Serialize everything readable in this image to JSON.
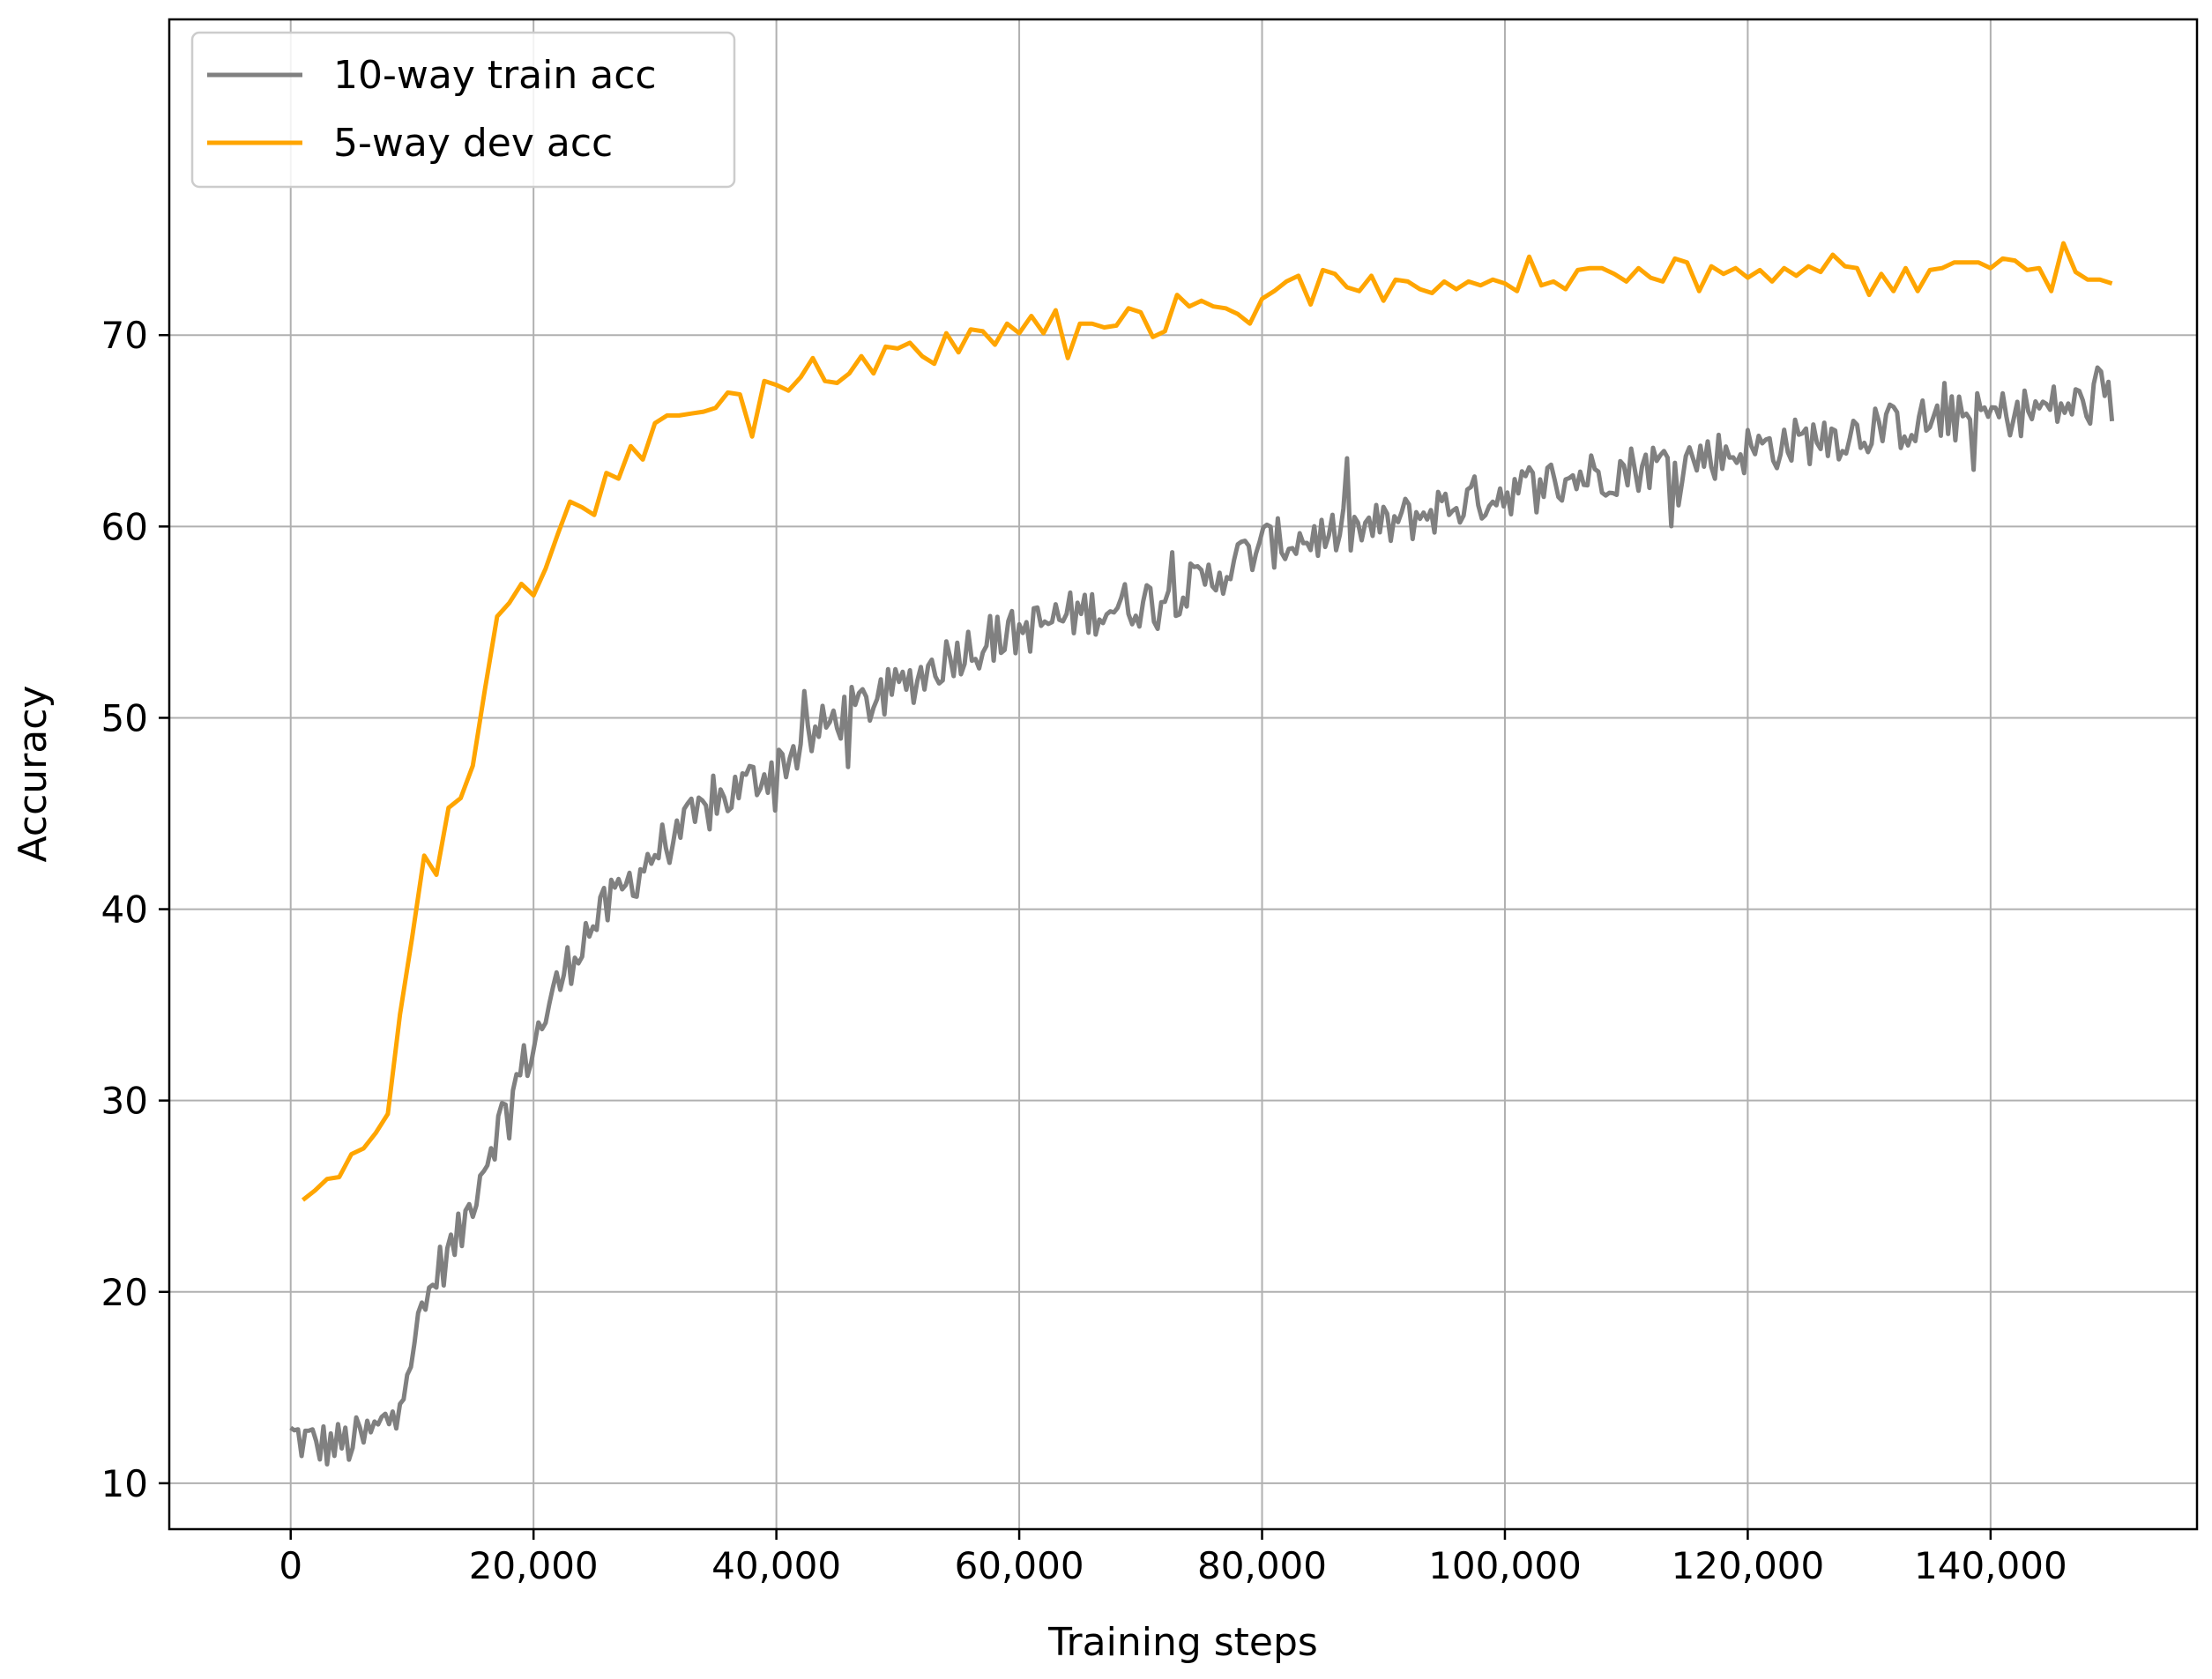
{
  "chart_data": {
    "type": "line",
    "title": "",
    "xlabel": "Training steps",
    "ylabel": "Accuracy",
    "xlim": [
      -10000,
      157000
    ],
    "ylim": [
      7.6,
      86.5
    ],
    "grid": true,
    "legend_position": "top-left",
    "x_ticks": [
      0,
      20000,
      40000,
      60000,
      80000,
      100000,
      120000,
      140000
    ],
    "x_tick_labels": [
      "0",
      "20,000",
      "40,000",
      "60,000",
      "80,000",
      "100,000",
      "120,000",
      "140,000"
    ],
    "y_ticks": [
      10,
      20,
      30,
      40,
      50,
      60,
      70
    ],
    "y_tick_labels": [
      "10",
      "20",
      "30",
      "40",
      "50",
      "60",
      "70"
    ],
    "series": [
      {
        "name": "10-way train acc",
        "color": "#808080",
        "noisy": true,
        "noise": 1.3,
        "x": [
          0,
          2000,
          4000,
          6000,
          8000,
          10000,
          12000,
          14000,
          16000,
          18000,
          20000,
          22000,
          24000,
          26000,
          28000,
          30000,
          35000,
          40000,
          45000,
          50000,
          55000,
          60000,
          65000,
          70000,
          75000,
          80000,
          85000,
          90000,
          95000,
          100000,
          105000,
          110000,
          115000,
          120000,
          125000,
          130000,
          135000,
          140000,
          145000,
          150000
        ],
        "values": [
          12.5,
          12.0,
          12.0,
          12.3,
          13.2,
          17.0,
          21.0,
          23.0,
          27.0,
          30.0,
          33.0,
          36.0,
          38.5,
          40.0,
          41.5,
          43.0,
          45.5,
          47.5,
          50.0,
          51.5,
          53.5,
          54.5,
          55.5,
          56.0,
          57.0,
          59.0,
          59.5,
          60.0,
          61.0,
          61.8,
          62.5,
          63.0,
          63.5,
          64.0,
          64.5,
          65.0,
          65.5,
          65.8,
          66.2,
          66.5
        ]
      },
      {
        "name": "5-way dev acc",
        "color": "#FFA500",
        "noisy": false,
        "x": [
          1000,
          2000,
          3000,
          4000,
          5000,
          6000,
          7000,
          8000,
          9000,
          10000,
          11000,
          12000,
          13000,
          14000,
          15000,
          16000,
          17000,
          18000,
          19000,
          20000,
          21000,
          22000,
          23000,
          24000,
          25000,
          26000,
          27000,
          28000,
          29000,
          30000,
          31000,
          32000,
          33000,
          34000,
          35000,
          36000,
          37000,
          38000,
          39000,
          40000,
          41000,
          42000,
          43000,
          44000,
          45000,
          46000,
          47000,
          48000,
          49000,
          50000,
          51000,
          52000,
          53000,
          54000,
          55000,
          56000,
          57000,
          58000,
          59000,
          60000,
          61000,
          62000,
          63000,
          64000,
          65000,
          66000,
          67000,
          68000,
          69000,
          70000,
          71000,
          72000,
          73000,
          74000,
          75000,
          76000,
          77000,
          78000,
          79000,
          80000,
          81000,
          82000,
          83000,
          84000,
          85000,
          86000,
          87000,
          88000,
          89000,
          90000,
          91000,
          92000,
          93000,
          94000,
          95000,
          96000,
          97000,
          98000,
          99000,
          100000,
          101000,
          102000,
          103000,
          104000,
          105000,
          106000,
          107000,
          108000,
          109000,
          110000,
          111000,
          112000,
          113000,
          114000,
          115000,
          116000,
          117000,
          118000,
          119000,
          120000,
          121000,
          122000,
          123000,
          124000,
          125000,
          126000,
          127000,
          128000,
          129000,
          130000,
          131000,
          132000,
          133000,
          134000,
          135000,
          136000,
          137000,
          138000,
          139000,
          140000,
          141000,
          142000,
          143000,
          144000,
          145000,
          146000,
          147000,
          148000,
          149000,
          150000
        ],
        "values": [
          24.8,
          25.3,
          25.9,
          26.0,
          27.2,
          27.5,
          28.3,
          29.3,
          34.5,
          38.5,
          42.8,
          41.8,
          45.3,
          45.8,
          47.5,
          51.5,
          55.3,
          56.0,
          57.0,
          56.4,
          57.8,
          59.6,
          61.3,
          61.0,
          60.6,
          62.8,
          62.5,
          64.2,
          63.5,
          65.4,
          65.8,
          65.8,
          65.9,
          66.0,
          66.2,
          67.0,
          66.9,
          64.7,
          67.6,
          67.4,
          67.1,
          67.8,
          68.8,
          67.6,
          67.5,
          68.0,
          68.9,
          68.0,
          69.4,
          69.3,
          69.6,
          68.9,
          68.5,
          70.1,
          69.1,
          70.3,
          70.2,
          69.5,
          70.6,
          70.1,
          71.0,
          70.1,
          71.3,
          68.8,
          70.6,
          70.6,
          70.4,
          70.5,
          71.4,
          71.2,
          69.9,
          70.2,
          72.1,
          71.5,
          71.8,
          71.5,
          71.4,
          71.1,
          70.6,
          71.9,
          72.3,
          72.8,
          73.1,
          71.6,
          73.4,
          73.2,
          72.5,
          72.3,
          73.1,
          71.8,
          72.9,
          72.8,
          72.4,
          72.2,
          72.8,
          72.4,
          72.8,
          72.6,
          72.9,
          72.7,
          72.3,
          74.1,
          72.6,
          72.8,
          72.4,
          73.4,
          73.5,
          73.5,
          73.2,
          72.8,
          73.5,
          73.0,
          72.8,
          74.0,
          73.8,
          72.3,
          73.6,
          73.2,
          73.5,
          73.0,
          73.4,
          72.8,
          73.5,
          73.1,
          73.6,
          73.3,
          74.2,
          73.6,
          73.5,
          72.1,
          73.2,
          72.3,
          73.5,
          72.3,
          73.4,
          73.5,
          73.8,
          73.8,
          73.8,
          73.5,
          74.0,
          73.9,
          73.4,
          73.5,
          72.3,
          74.8,
          73.3,
          72.9,
          72.9,
          72.7
        ]
      }
    ]
  }
}
